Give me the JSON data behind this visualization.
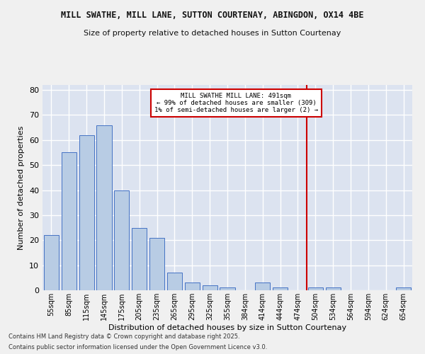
{
  "title1": "MILL SWATHE, MILL LANE, SUTTON COURTENAY, ABINGDON, OX14 4BE",
  "title2": "Size of property relative to detached houses in Sutton Courtenay",
  "xlabel": "Distribution of detached houses by size in Sutton Courtenay",
  "ylabel": "Number of detached properties",
  "bar_labels": [
    "55sqm",
    "85sqm",
    "115sqm",
    "145sqm",
    "175sqm",
    "205sqm",
    "235sqm",
    "265sqm",
    "295sqm",
    "325sqm",
    "355sqm",
    "384sqm",
    "414sqm",
    "444sqm",
    "474sqm",
    "504sqm",
    "534sqm",
    "564sqm",
    "594sqm",
    "624sqm",
    "654sqm"
  ],
  "bar_values": [
    22,
    55,
    62,
    66,
    40,
    25,
    21,
    7,
    3,
    2,
    1,
    0,
    3,
    1,
    0,
    1,
    1,
    0,
    0,
    0,
    1
  ],
  "bar_color": "#b8cce4",
  "bar_edge_color": "#4472c4",
  "bg_color": "#dce3f0",
  "grid_color": "#ffffff",
  "vline_x": 14.5,
  "vline_color": "#cc0000",
  "annotation_text": "MILL SWATHE MILL LANE: 491sqm\n← 99% of detached houses are smaller (309)\n1% of semi-detached houses are larger (2) →",
  "annotation_box_color": "#cc0000",
  "footer1": "Contains HM Land Registry data © Crown copyright and database right 2025.",
  "footer2": "Contains public sector information licensed under the Open Government Licence v3.0.",
  "ylim": [
    0,
    82
  ],
  "yticks": [
    0,
    10,
    20,
    30,
    40,
    50,
    60,
    70,
    80
  ],
  "fig_bg": "#f0f0f0"
}
